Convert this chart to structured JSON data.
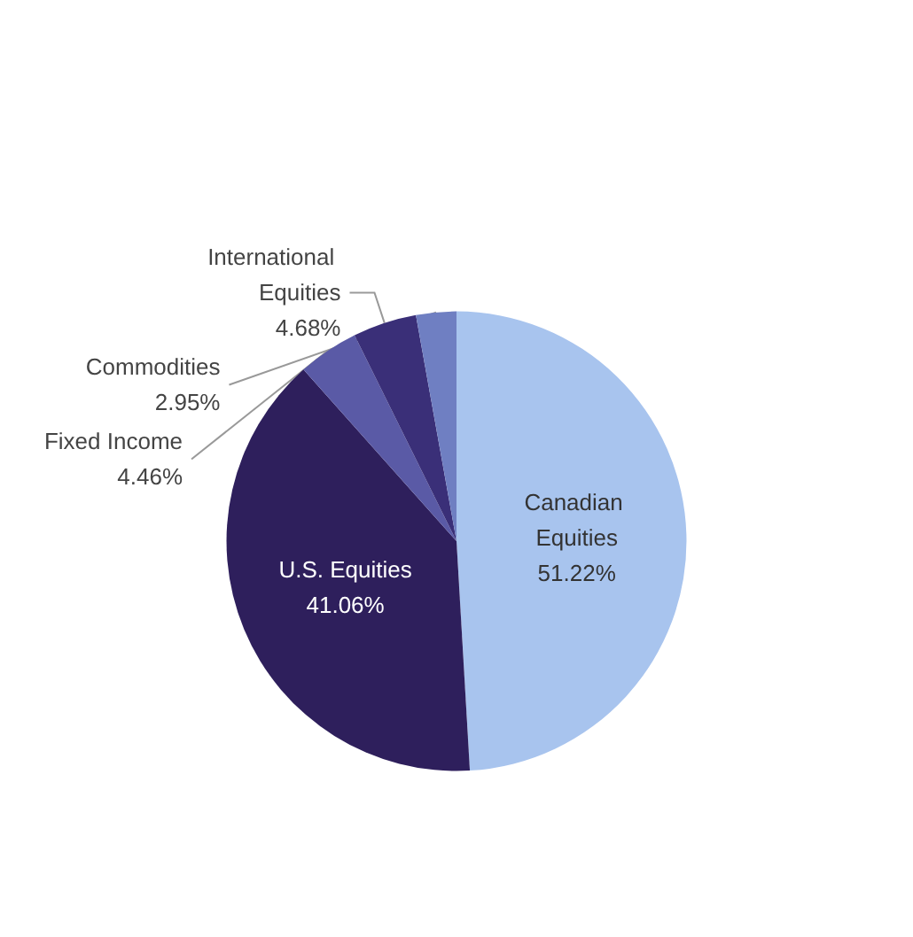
{
  "chart_data": {
    "type": "pie",
    "categories": [
      "Canadian Equities",
      "U.S. Equities",
      "Fixed Income",
      "International Equities",
      "Commodities"
    ],
    "values": [
      51.22,
      41.06,
      4.46,
      4.68,
      2.95
    ],
    "value_labels": [
      "51.22%",
      "41.06%",
      "4.46%",
      "4.68%",
      "2.95%"
    ],
    "colors": [
      "#a8c4ee",
      "#2e1f5c",
      "#5a5aa6",
      "#3a2f78",
      "#6f7fc2"
    ],
    "legend": false
  }
}
